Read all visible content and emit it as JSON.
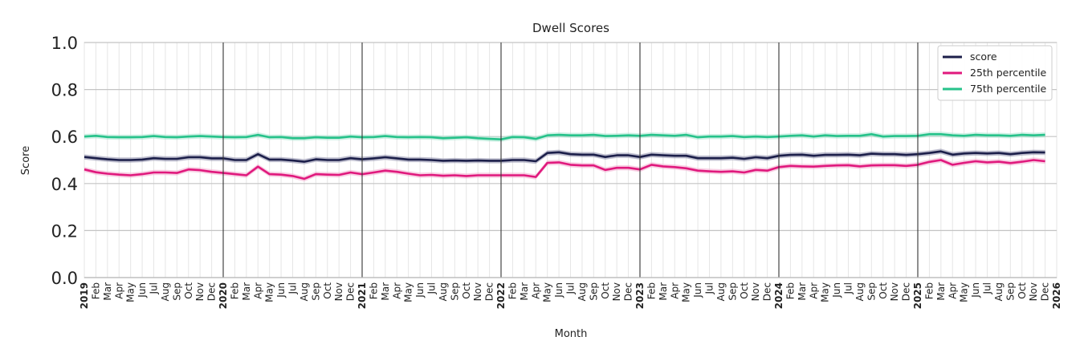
{
  "chart_data": {
    "type": "line",
    "title": "Dwell Scores",
    "xlabel": "Month",
    "ylabel": "Score",
    "ylim": [
      0.0,
      1.0
    ],
    "yticks": [
      "0.0",
      "0.2",
      "0.4",
      "0.6",
      "0.8",
      "1.0"
    ],
    "grid": true,
    "legend_position": "top-right",
    "x_range": [
      "2019-01",
      "2026-01"
    ],
    "x_tick_labels": [
      "2019",
      "Feb",
      "Mar",
      "Apr",
      "May",
      "Jun",
      "Jul",
      "Aug",
      "Sep",
      "Oct",
      "Nov",
      "Dec",
      "2020",
      "Feb",
      "Mar",
      "Apr",
      "May",
      "Jun",
      "Jul",
      "Aug",
      "Sep",
      "Oct",
      "Nov",
      "Dec",
      "2021",
      "Feb",
      "Mar",
      "Apr",
      "May",
      "Jun",
      "Jul",
      "Aug",
      "Sep",
      "Oct",
      "Nov",
      "Dec",
      "2022",
      "Feb",
      "Mar",
      "Apr",
      "May",
      "Jun",
      "Jul",
      "Aug",
      "Sep",
      "Oct",
      "Nov",
      "Dec",
      "2023",
      "Feb",
      "Mar",
      "Apr",
      "May",
      "Jun",
      "Jul",
      "Aug",
      "Sep",
      "Oct",
      "Nov",
      "Dec",
      "2024",
      "Feb",
      "Mar",
      "Apr",
      "May",
      "Jun",
      "Jul",
      "Aug",
      "Sep",
      "Oct",
      "Nov",
      "Dec",
      "2025",
      "Feb",
      "Mar",
      "Apr",
      "May",
      "Jun",
      "Jul",
      "Aug",
      "Sep",
      "Oct",
      "Nov",
      "Dec",
      "2026"
    ],
    "year_lines": [
      "2020",
      "2021",
      "2022",
      "2023",
      "2024",
      "2025"
    ],
    "series": [
      {
        "name": "score",
        "color": "#1c1f4a",
        "band_color": "#8a8aa8",
        "values": [
          0.513,
          0.508,
          0.503,
          0.5,
          0.5,
          0.502,
          0.508,
          0.505,
          0.505,
          0.512,
          0.512,
          0.507,
          0.507,
          0.5,
          0.5,
          0.525,
          0.502,
          0.502,
          0.498,
          0.493,
          0.503,
          0.5,
          0.5,
          0.508,
          0.503,
          0.507,
          0.512,
          0.507,
          0.502,
          0.502,
          0.5,
          0.497,
          0.498,
          0.497,
          0.498,
          0.497,
          0.497,
          0.5,
          0.5,
          0.495,
          0.53,
          0.533,
          0.525,
          0.523,
          0.523,
          0.513,
          0.52,
          0.52,
          0.513,
          0.523,
          0.52,
          0.518,
          0.518,
          0.508,
          0.508,
          0.508,
          0.51,
          0.505,
          0.512,
          0.508,
          0.518,
          0.522,
          0.523,
          0.518,
          0.522,
          0.522,
          0.523,
          0.52,
          0.527,
          0.525,
          0.525,
          0.522,
          0.525,
          0.53,
          0.537,
          0.523,
          0.528,
          0.53,
          0.528,
          0.53,
          0.525,
          0.53,
          0.533,
          0.532
        ]
      },
      {
        "name": "25th percentile",
        "color": "#e0197d",
        "band_color": "#f2a9cd",
        "values": [
          0.46,
          0.448,
          0.442,
          0.438,
          0.435,
          0.44,
          0.447,
          0.447,
          0.445,
          0.46,
          0.457,
          0.45,
          0.445,
          0.44,
          0.435,
          0.472,
          0.44,
          0.438,
          0.432,
          0.42,
          0.44,
          0.438,
          0.437,
          0.447,
          0.44,
          0.447,
          0.455,
          0.45,
          0.442,
          0.435,
          0.437,
          0.433,
          0.435,
          0.432,
          0.435,
          0.435,
          0.435,
          0.435,
          0.435,
          0.428,
          0.488,
          0.49,
          0.48,
          0.477,
          0.477,
          0.458,
          0.467,
          0.467,
          0.46,
          0.48,
          0.473,
          0.47,
          0.465,
          0.455,
          0.452,
          0.45,
          0.452,
          0.447,
          0.458,
          0.455,
          0.47,
          0.475,
          0.473,
          0.472,
          0.475,
          0.477,
          0.478,
          0.473,
          0.477,
          0.478,
          0.478,
          0.475,
          0.48,
          0.492,
          0.5,
          0.48,
          0.488,
          0.495,
          0.49,
          0.493,
          0.487,
          0.493,
          0.5,
          0.495
        ]
      },
      {
        "name": "75th percentile",
        "color": "#26c28a",
        "band_color": "#a8e6cf",
        "values": [
          0.6,
          0.603,
          0.598,
          0.597,
          0.597,
          0.598,
          0.602,
          0.598,
          0.597,
          0.6,
          0.602,
          0.6,
          0.598,
          0.597,
          0.598,
          0.607,
          0.597,
          0.598,
          0.593,
          0.593,
          0.597,
          0.595,
          0.595,
          0.6,
          0.597,
          0.598,
          0.602,
          0.598,
          0.597,
          0.598,
          0.597,
          0.593,
          0.595,
          0.597,
          0.593,
          0.59,
          0.588,
          0.598,
          0.597,
          0.59,
          0.605,
          0.607,
          0.605,
          0.605,
          0.607,
          0.602,
          0.603,
          0.605,
          0.603,
          0.607,
          0.605,
          0.603,
          0.607,
          0.597,
          0.6,
          0.6,
          0.602,
          0.598,
          0.6,
          0.598,
          0.6,
          0.603,
          0.605,
          0.6,
          0.605,
          0.602,
          0.603,
          0.603,
          0.61,
          0.6,
          0.602,
          0.602,
          0.603,
          0.61,
          0.61,
          0.605,
          0.603,
          0.607,
          0.605,
          0.605,
          0.603,
          0.607,
          0.605,
          0.607
        ]
      }
    ]
  }
}
